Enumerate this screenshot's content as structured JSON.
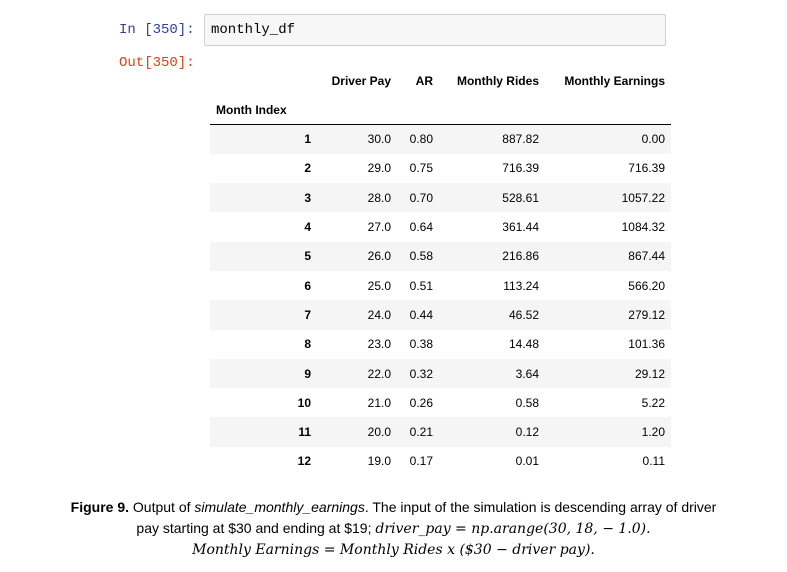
{
  "cell": {
    "in_prompt": "In [350]:",
    "code": "monthly_df",
    "out_prompt": "Out[350]:"
  },
  "table": {
    "columns": [
      "Driver Pay",
      "AR",
      "Monthly Rides",
      "Monthly Earnings"
    ],
    "index_name": "Month Index",
    "rows": [
      {
        "idx": "1",
        "pay": "30.0",
        "ar": "0.80",
        "rides": "887.82",
        "earn": "0.00"
      },
      {
        "idx": "2",
        "pay": "29.0",
        "ar": "0.75",
        "rides": "716.39",
        "earn": "716.39"
      },
      {
        "idx": "3",
        "pay": "28.0",
        "ar": "0.70",
        "rides": "528.61",
        "earn": "1057.22"
      },
      {
        "idx": "4",
        "pay": "27.0",
        "ar": "0.64",
        "rides": "361.44",
        "earn": "1084.32"
      },
      {
        "idx": "5",
        "pay": "26.0",
        "ar": "0.58",
        "rides": "216.86",
        "earn": "867.44"
      },
      {
        "idx": "6",
        "pay": "25.0",
        "ar": "0.51",
        "rides": "113.24",
        "earn": "566.20"
      },
      {
        "idx": "7",
        "pay": "24.0",
        "ar": "0.44",
        "rides": "46.52",
        "earn": "279.12"
      },
      {
        "idx": "8",
        "pay": "23.0",
        "ar": "0.38",
        "rides": "14.48",
        "earn": "101.36"
      },
      {
        "idx": "9",
        "pay": "22.0",
        "ar": "0.32",
        "rides": "3.64",
        "earn": "29.12"
      },
      {
        "idx": "10",
        "pay": "21.0",
        "ar": "0.26",
        "rides": "0.58",
        "earn": "5.22"
      },
      {
        "idx": "11",
        "pay": "20.0",
        "ar": "0.21",
        "rides": "0.12",
        "earn": "1.20"
      },
      {
        "idx": "12",
        "pay": "19.0",
        "ar": "0.17",
        "rides": "0.01",
        "earn": "0.11"
      }
    ]
  },
  "caption": {
    "label": "Figure 9.",
    "text_a": " Output of ",
    "func": "simulate_monthly_earnings",
    "text_b": ". The input of the simulation is descending array of driver",
    "text_c": "pay starting at $30 and ending at $19; ",
    "formula1": "driver_pay = np.arange(30, 18, − 1.0).",
    "formula2": "Monthly Earnings = Monthly Rides x ($30 − driver pay)."
  }
}
